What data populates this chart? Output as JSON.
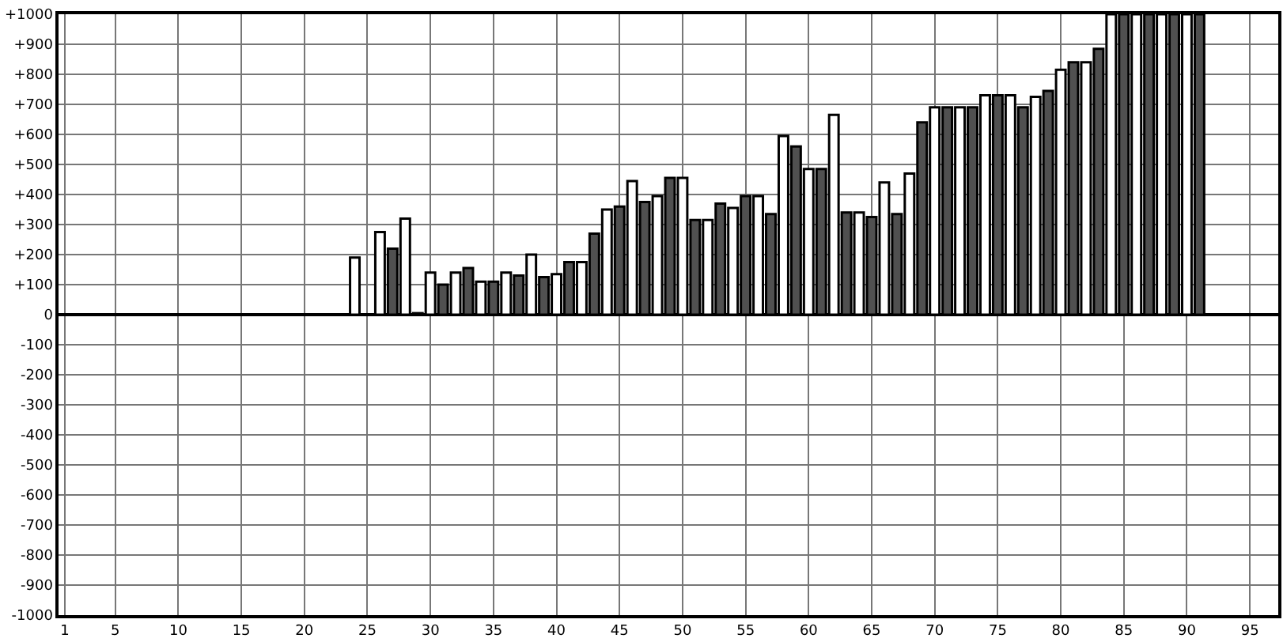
{
  "chart_data": {
    "type": "bar",
    "series": [
      {
        "color": "#ffffff",
        "x": [
          24,
          26,
          28,
          30,
          32,
          34,
          36,
          38,
          40,
          42,
          44,
          46,
          48,
          50,
          52,
          54,
          56,
          58,
          60,
          62,
          64,
          66,
          68,
          70,
          72,
          74,
          76,
          78,
          80,
          82,
          84,
          86,
          88,
          90
        ],
        "values": [
          190,
          275,
          320,
          140,
          140,
          110,
          140,
          200,
          135,
          175,
          350,
          445,
          395,
          455,
          315,
          355,
          395,
          595,
          485,
          665,
          340,
          440,
          470,
          690,
          690,
          730,
          730,
          725,
          815,
          840,
          1000,
          1000,
          1000,
          1000
        ]
      },
      {
        "color": "#505050",
        "x": [
          27,
          29,
          31,
          33,
          35,
          37,
          39,
          41,
          43,
          45,
          47,
          49,
          51,
          53,
          55,
          57,
          59,
          61,
          63,
          65,
          67,
          69,
          71,
          73,
          75,
          77,
          79,
          81,
          83,
          85,
          87,
          89,
          91
        ],
        "values": [
          220,
          5,
          100,
          155,
          110,
          130,
          125,
          175,
          270,
          360,
          375,
          455,
          315,
          370,
          395,
          335,
          560,
          485,
          340,
          325,
          335,
          640,
          690,
          690,
          730,
          690,
          745,
          840,
          885,
          1000,
          1000,
          1000,
          1000
        ]
      }
    ],
    "xlim": [
      0.5,
      97.25
    ],
    "xticks": [
      1,
      5,
      10,
      15,
      20,
      25,
      30,
      35,
      40,
      45,
      50,
      55,
      60,
      65,
      70,
      75,
      80,
      85,
      90,
      95
    ],
    "ylim": [
      -1000,
      1000
    ],
    "yticks": [
      {
        "value": 1000,
        "label": "+1000"
      },
      {
        "value": 900,
        "label": "+900"
      },
      {
        "value": 800,
        "label": "+800"
      },
      {
        "value": 700,
        "label": "+700"
      },
      {
        "value": 600,
        "label": "+600"
      },
      {
        "value": 500,
        "label": "+500"
      },
      {
        "value": 400,
        "label": "+400"
      },
      {
        "value": 300,
        "label": "+300"
      },
      {
        "value": 200,
        "label": "+200"
      },
      {
        "value": 100,
        "label": "+100"
      },
      0,
      -100,
      -200,
      -300,
      -400,
      -500,
      -600,
      -700,
      -800,
      -900,
      -1000
    ],
    "grid": true
  }
}
